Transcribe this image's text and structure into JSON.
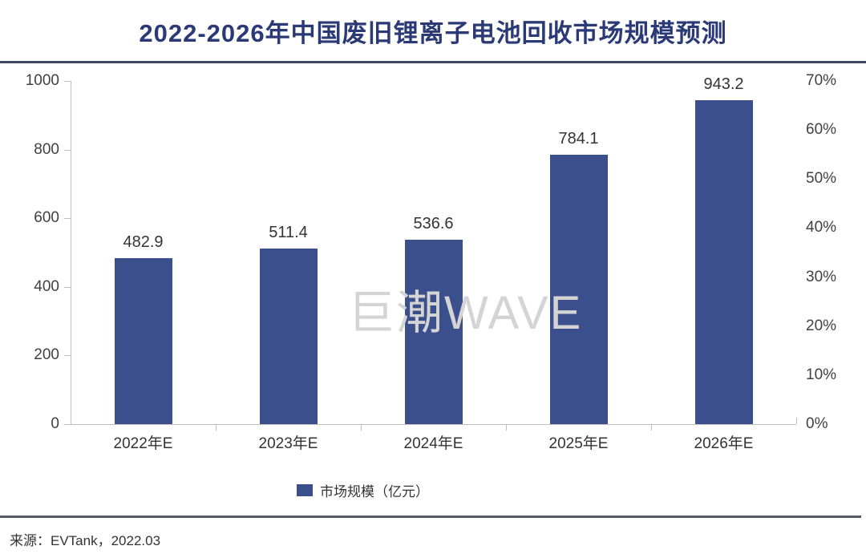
{
  "title": "2022-2026年中国废旧锂离子电池回收市场规模预测",
  "watermark": "巨潮WAVE",
  "source": "来源：EVTank，2022.03",
  "legend": {
    "label": "市场规模（亿元）"
  },
  "colors": {
    "bar": "#3B4F8D",
    "title_text": "#2B3A76",
    "title_rule": "#3E4566",
    "footer_rule": "#565C66",
    "axis_line": "#BFBFBF",
    "tick_text": "#404040",
    "value_text": "#333333",
    "category_text": "#333333",
    "watermark_text": "#D4D4D4"
  },
  "chart_data": {
    "type": "bar",
    "categories": [
      "2022年E",
      "2023年E",
      "2024年E",
      "2025年E",
      "2026年E"
    ],
    "series": [
      {
        "name": "市场规模（亿元）",
        "values": [
          482.9,
          511.4,
          536.6,
          784.1,
          943.2
        ]
      }
    ],
    "value_labels": [
      "482.9",
      "511.4",
      "536.6",
      "784.1",
      "943.2"
    ],
    "title": "2022-2026年中国废旧锂离子电池回收市场规模预测",
    "xlabel": "",
    "ylabel_left": "市场规模（亿元）",
    "ylabel_right": "",
    "left_axis_ticks": [
      0,
      200,
      400,
      600,
      800,
      1000
    ],
    "left_axis_range": [
      0,
      1000
    ],
    "right_axis_ticks": [
      "0%",
      "10%",
      "20%",
      "30%",
      "40%",
      "50%",
      "60%",
      "70%"
    ],
    "right_axis_range": [
      "0%",
      "70%"
    ],
    "grid": false,
    "legend_position": "bottom"
  }
}
